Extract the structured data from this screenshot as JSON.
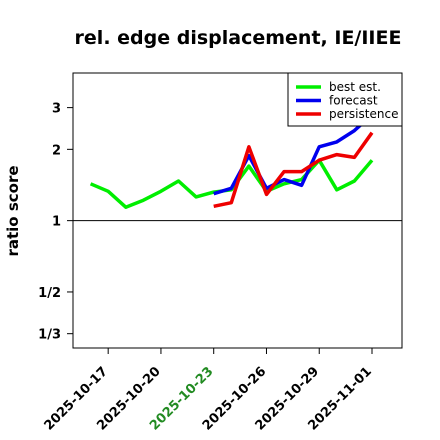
{
  "chart_data": {
    "type": "line",
    "title": "rel. edge displacement, IE/IIEE",
    "xlabel": "",
    "ylabel": "ratio score",
    "y_scale": "log",
    "ylim": [
      0.29,
      4.2
    ],
    "xlim": [
      "2025-10-15",
      "2025-11-01"
    ],
    "y_ticks": [
      {
        "value": 3,
        "label": "3"
      },
      {
        "value": 2,
        "label": "2"
      },
      {
        "value": 1,
        "label": "1"
      },
      {
        "value": 0.5,
        "label": "1/2"
      },
      {
        "value": 0.3333,
        "label": "1/3"
      }
    ],
    "x_ticks": [
      {
        "value": "2025-10-17",
        "label": "2025-10-17",
        "color": "#000000"
      },
      {
        "value": "2025-10-20",
        "label": "2025-10-20",
        "color": "#000000"
      },
      {
        "value": "2025-10-23",
        "label": "2025-10-23",
        "color": "#228b22"
      },
      {
        "value": "2025-10-26",
        "label": "2025-10-26",
        "color": "#000000"
      },
      {
        "value": "2025-10-29",
        "label": "2025-10-29",
        "color": "#000000"
      },
      {
        "value": "2025-11-01",
        "label": "2025-11-01",
        "color": "#000000"
      }
    ],
    "reference_line": 1,
    "legend_position": "top-right",
    "series": [
      {
        "name": "best est.",
        "color": "#00ee00",
        "points": [
          [
            "2025-10-16",
            1.43
          ],
          [
            "2025-10-17",
            1.33
          ],
          [
            "2025-10-18",
            1.14
          ],
          [
            "2025-10-19",
            1.22
          ],
          [
            "2025-10-20",
            1.33
          ],
          [
            "2025-10-21",
            1.47
          ],
          [
            "2025-10-22",
            1.26
          ],
          [
            "2025-10-23",
            1.32
          ],
          [
            "2025-10-24",
            1.35
          ],
          [
            "2025-10-25",
            1.7
          ],
          [
            "2025-10-26",
            1.33
          ],
          [
            "2025-10-27",
            1.43
          ],
          [
            "2025-10-28",
            1.49
          ],
          [
            "2025-10-29",
            1.8
          ],
          [
            "2025-10-30",
            1.35
          ],
          [
            "2025-10-31",
            1.47
          ],
          [
            "2025-11-01",
            1.8
          ]
        ]
      },
      {
        "name": "forecast",
        "color": "#0000ee",
        "points": [
          [
            "2025-10-23",
            1.3
          ],
          [
            "2025-10-24",
            1.37
          ],
          [
            "2025-10-25",
            1.88
          ],
          [
            "2025-10-26",
            1.37
          ],
          [
            "2025-10-27",
            1.49
          ],
          [
            "2025-10-28",
            1.41
          ],
          [
            "2025-10-29",
            2.05
          ],
          [
            "2025-10-30",
            2.15
          ],
          [
            "2025-10-31",
            2.4
          ],
          [
            "2025-11-01",
            2.8
          ]
        ]
      },
      {
        "name": "persistence",
        "color": "#ee0000",
        "points": [
          [
            "2025-10-23",
            1.15
          ],
          [
            "2025-10-24",
            1.19
          ],
          [
            "2025-10-25",
            2.05
          ],
          [
            "2025-10-26",
            1.29
          ],
          [
            "2025-10-27",
            1.61
          ],
          [
            "2025-10-28",
            1.61
          ],
          [
            "2025-10-29",
            1.8
          ],
          [
            "2025-10-30",
            1.9
          ],
          [
            "2025-10-31",
            1.85
          ],
          [
            "2025-11-01",
            2.35
          ]
        ]
      }
    ]
  }
}
